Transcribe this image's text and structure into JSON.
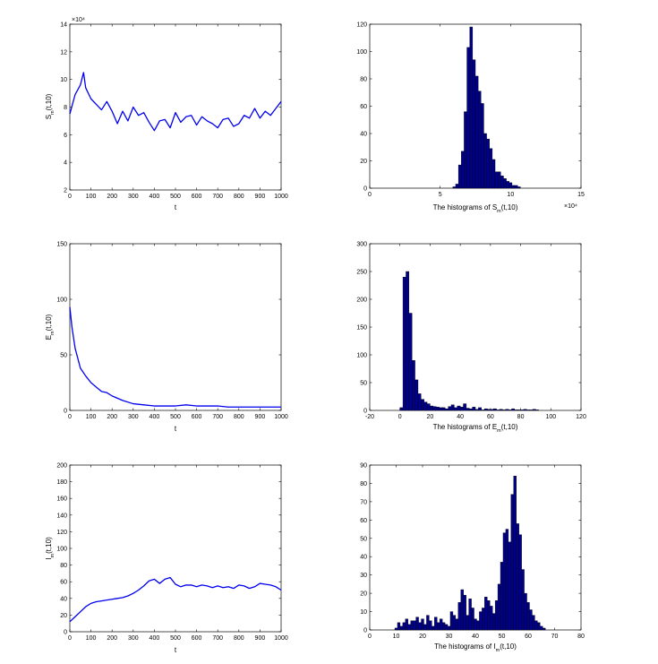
{
  "colors": {
    "line": "#0000ee",
    "bar_fill": "#00008b",
    "bar_edge": "#000000",
    "axis": "#000000",
    "background": "#ffffff"
  },
  "chart_data": [
    {
      "type": "line",
      "id": "S_time",
      "xlabel": "t",
      "ylabel": "S_m(t,10)",
      "ylabel_base": "S",
      "ylabel_sub": "m",
      "ylabel_rest": "(t,10)",
      "exponent_label": "×10⁴",
      "xlim": [
        0,
        1000
      ],
      "ylim": [
        2,
        14
      ],
      "xticks": [
        "0",
        "100",
        "200",
        "300",
        "400",
        "500",
        "600",
        "700",
        "800",
        "900",
        "1000"
      ],
      "yticks": [
        "2",
        "4",
        "6",
        "8",
        "10",
        "12",
        "14"
      ],
      "x": [
        0,
        25,
        50,
        65,
        75,
        100,
        125,
        150,
        175,
        200,
        225,
        250,
        275,
        300,
        325,
        350,
        375,
        400,
        425,
        450,
        475,
        500,
        525,
        550,
        575,
        600,
        625,
        650,
        675,
        700,
        725,
        750,
        775,
        800,
        825,
        850,
        875,
        900,
        925,
        950,
        975,
        1000
      ],
      "y": [
        7.5,
        8.9,
        9.6,
        10.5,
        9.4,
        8.6,
        8.2,
        7.8,
        8.4,
        7.7,
        6.8,
        7.7,
        7.0,
        8.0,
        7.4,
        7.6,
        6.9,
        6.3,
        7.0,
        7.1,
        6.5,
        7.6,
        6.9,
        7.3,
        7.4,
        6.7,
        7.3,
        7.0,
        6.8,
        6.5,
        7.1,
        7.2,
        6.6,
        6.8,
        7.4,
        7.2,
        7.9,
        7.2,
        7.7,
        7.4,
        7.9,
        8.4
      ]
    },
    {
      "type": "bar",
      "id": "S_hist",
      "xlabel": "The histograms of S_m(t,10)",
      "xlabel_pre": "The histograms of S",
      "xlabel_sub": "m",
      "xlabel_post": "(t,10)",
      "exponent_label": "×10⁴",
      "xlim": [
        0,
        15
      ],
      "ylim": [
        0,
        120
      ],
      "xticks": [
        "0",
        "5",
        "10",
        "15"
      ],
      "yticks": [
        "0",
        "20",
        "40",
        "60",
        "80",
        "100",
        "120"
      ],
      "x": [
        6.0,
        6.2,
        6.4,
        6.6,
        6.8,
        7.0,
        7.2,
        7.4,
        7.6,
        7.8,
        8.0,
        8.2,
        8.4,
        8.6,
        8.8,
        9.0,
        9.2,
        9.4,
        9.6,
        9.8,
        10.0,
        10.2,
        10.4,
        10.6
      ],
      "values": [
        1,
        3,
        17,
        27,
        56,
        103,
        118,
        94,
        82,
        71,
        62,
        40,
        36,
        29,
        21,
        12,
        12,
        9,
        7,
        5,
        4,
        2,
        2,
        1
      ],
      "bar_width": 0.2
    },
    {
      "type": "line",
      "id": "E_time",
      "xlabel": "t",
      "ylabel": "E_m(t,10)",
      "ylabel_base": "E",
      "ylabel_sub": "m",
      "ylabel_rest": "(t,10)",
      "xlim": [
        0,
        1000
      ],
      "ylim": [
        0,
        150
      ],
      "xticks": [
        "0",
        "100",
        "200",
        "300",
        "400",
        "500",
        "600",
        "700",
        "800",
        "900",
        "1000"
      ],
      "yticks": [
        "0",
        "50",
        "100",
        "150"
      ],
      "x": [
        0,
        10,
        25,
        50,
        75,
        100,
        125,
        150,
        175,
        200,
        250,
        300,
        350,
        400,
        450,
        500,
        550,
        600,
        650,
        700,
        750,
        800,
        850,
        900,
        950,
        1000
      ],
      "y": [
        93,
        75,
        56,
        38,
        31,
        25,
        21,
        17,
        16,
        13,
        9,
        6,
        5,
        4,
        4,
        4,
        5,
        4,
        4,
        4,
        3,
        3,
        3,
        3,
        3,
        3
      ]
    },
    {
      "type": "bar",
      "id": "E_hist",
      "xlabel": "The histograms of E_m(t,10)",
      "xlabel_pre": "The histograms of E",
      "xlabel_sub": "m",
      "xlabel_post": "(t,10)",
      "xlim": [
        -20,
        120
      ],
      "ylim": [
        0,
        300
      ],
      "xticks": [
        "-20",
        "0",
        "20",
        "40",
        "60",
        "80",
        "100",
        "120"
      ],
      "yticks": [
        "0",
        "50",
        "100",
        "150",
        "200",
        "250",
        "300"
      ],
      "x": [
        1,
        3,
        5,
        7,
        9,
        11,
        13,
        15,
        17,
        19,
        21,
        23,
        25,
        27,
        29,
        31,
        33,
        35,
        37,
        39,
        41,
        43,
        45,
        47,
        49,
        51,
        53,
        55,
        57,
        59,
        61,
        63,
        65,
        67,
        69,
        71,
        73,
        75,
        77,
        79,
        81,
        83,
        85,
        87,
        89,
        91
      ],
      "values": [
        5,
        240,
        250,
        175,
        90,
        55,
        30,
        20,
        15,
        12,
        8,
        7,
        6,
        5,
        5,
        3,
        7,
        10,
        5,
        8,
        6,
        12,
        4,
        3,
        6,
        2,
        5,
        1,
        3,
        2,
        2,
        3,
        1,
        2,
        1,
        2,
        1,
        3,
        1,
        1,
        1,
        2,
        1,
        1,
        2,
        1
      ],
      "bar_width": 2
    },
    {
      "type": "line",
      "id": "I_time",
      "xlabel": "t",
      "ylabel": "I_m(t,10)",
      "ylabel_base": "I",
      "ylabel_sub": "m",
      "ylabel_rest": "(t,10)",
      "xlim": [
        0,
        1000
      ],
      "ylim": [
        0,
        200
      ],
      "xticks": [
        "0",
        "100",
        "200",
        "300",
        "400",
        "500",
        "600",
        "700",
        "800",
        "900",
        "1000"
      ],
      "yticks": [
        "0",
        "20",
        "40",
        "60",
        "80",
        "100",
        "120",
        "140",
        "160",
        "180",
        "200"
      ],
      "x": [
        0,
        25,
        50,
        75,
        100,
        125,
        150,
        175,
        200,
        225,
        250,
        275,
        300,
        325,
        350,
        375,
        400,
        425,
        450,
        475,
        500,
        525,
        550,
        575,
        600,
        625,
        650,
        675,
        700,
        725,
        750,
        775,
        800,
        825,
        850,
        875,
        900,
        925,
        950,
        975,
        1000
      ],
      "y": [
        12,
        18,
        24,
        30,
        34,
        36,
        37,
        38,
        39,
        40,
        41,
        43,
        46,
        50,
        55,
        61,
        63,
        58,
        63,
        65,
        57,
        54,
        56,
        56,
        54,
        56,
        55,
        53,
        55,
        53,
        54,
        52,
        56,
        55,
        52,
        54,
        58,
        57,
        56,
        54,
        50
      ]
    },
    {
      "type": "bar",
      "id": "I_hist",
      "xlabel": "The histograms of I_m(t,10)",
      "xlabel_pre": "The histograms of I",
      "xlabel_sub": "m",
      "xlabel_post": "(t,10)",
      "xlim": [
        0,
        80
      ],
      "ylim": [
        0,
        90
      ],
      "xticks": [
        "0",
        "10",
        "20",
        "30",
        "40",
        "50",
        "60",
        "70",
        "80"
      ],
      "yticks": [
        "0",
        "10",
        "20",
        "30",
        "40",
        "50",
        "60",
        "70",
        "80",
        "90"
      ],
      "x": [
        10,
        11,
        12,
        13,
        14,
        15,
        16,
        17,
        18,
        19,
        20,
        21,
        22,
        23,
        24,
        25,
        26,
        27,
        28,
        29,
        30,
        31,
        32,
        33,
        34,
        35,
        36,
        37,
        38,
        39,
        40,
        41,
        42,
        43,
        44,
        45,
        46,
        47,
        48,
        49,
        50,
        51,
        52,
        53,
        54,
        55,
        56,
        57,
        58,
        59,
        60,
        61,
        62,
        63,
        64,
        65,
        66
      ],
      "values": [
        1,
        4,
        2,
        4,
        6,
        3,
        5,
        5,
        7,
        4,
        6,
        3,
        8,
        5,
        2,
        7,
        4,
        6,
        4,
        3,
        2,
        10,
        8,
        6,
        15,
        22,
        19,
        8,
        17,
        12,
        6,
        5,
        10,
        12,
        18,
        16,
        13,
        9,
        16,
        25,
        37,
        53,
        55,
        48,
        74,
        84,
        58,
        52,
        33,
        20,
        15,
        11,
        8,
        5,
        4,
        2,
        1
      ],
      "bar_width": 1
    }
  ]
}
